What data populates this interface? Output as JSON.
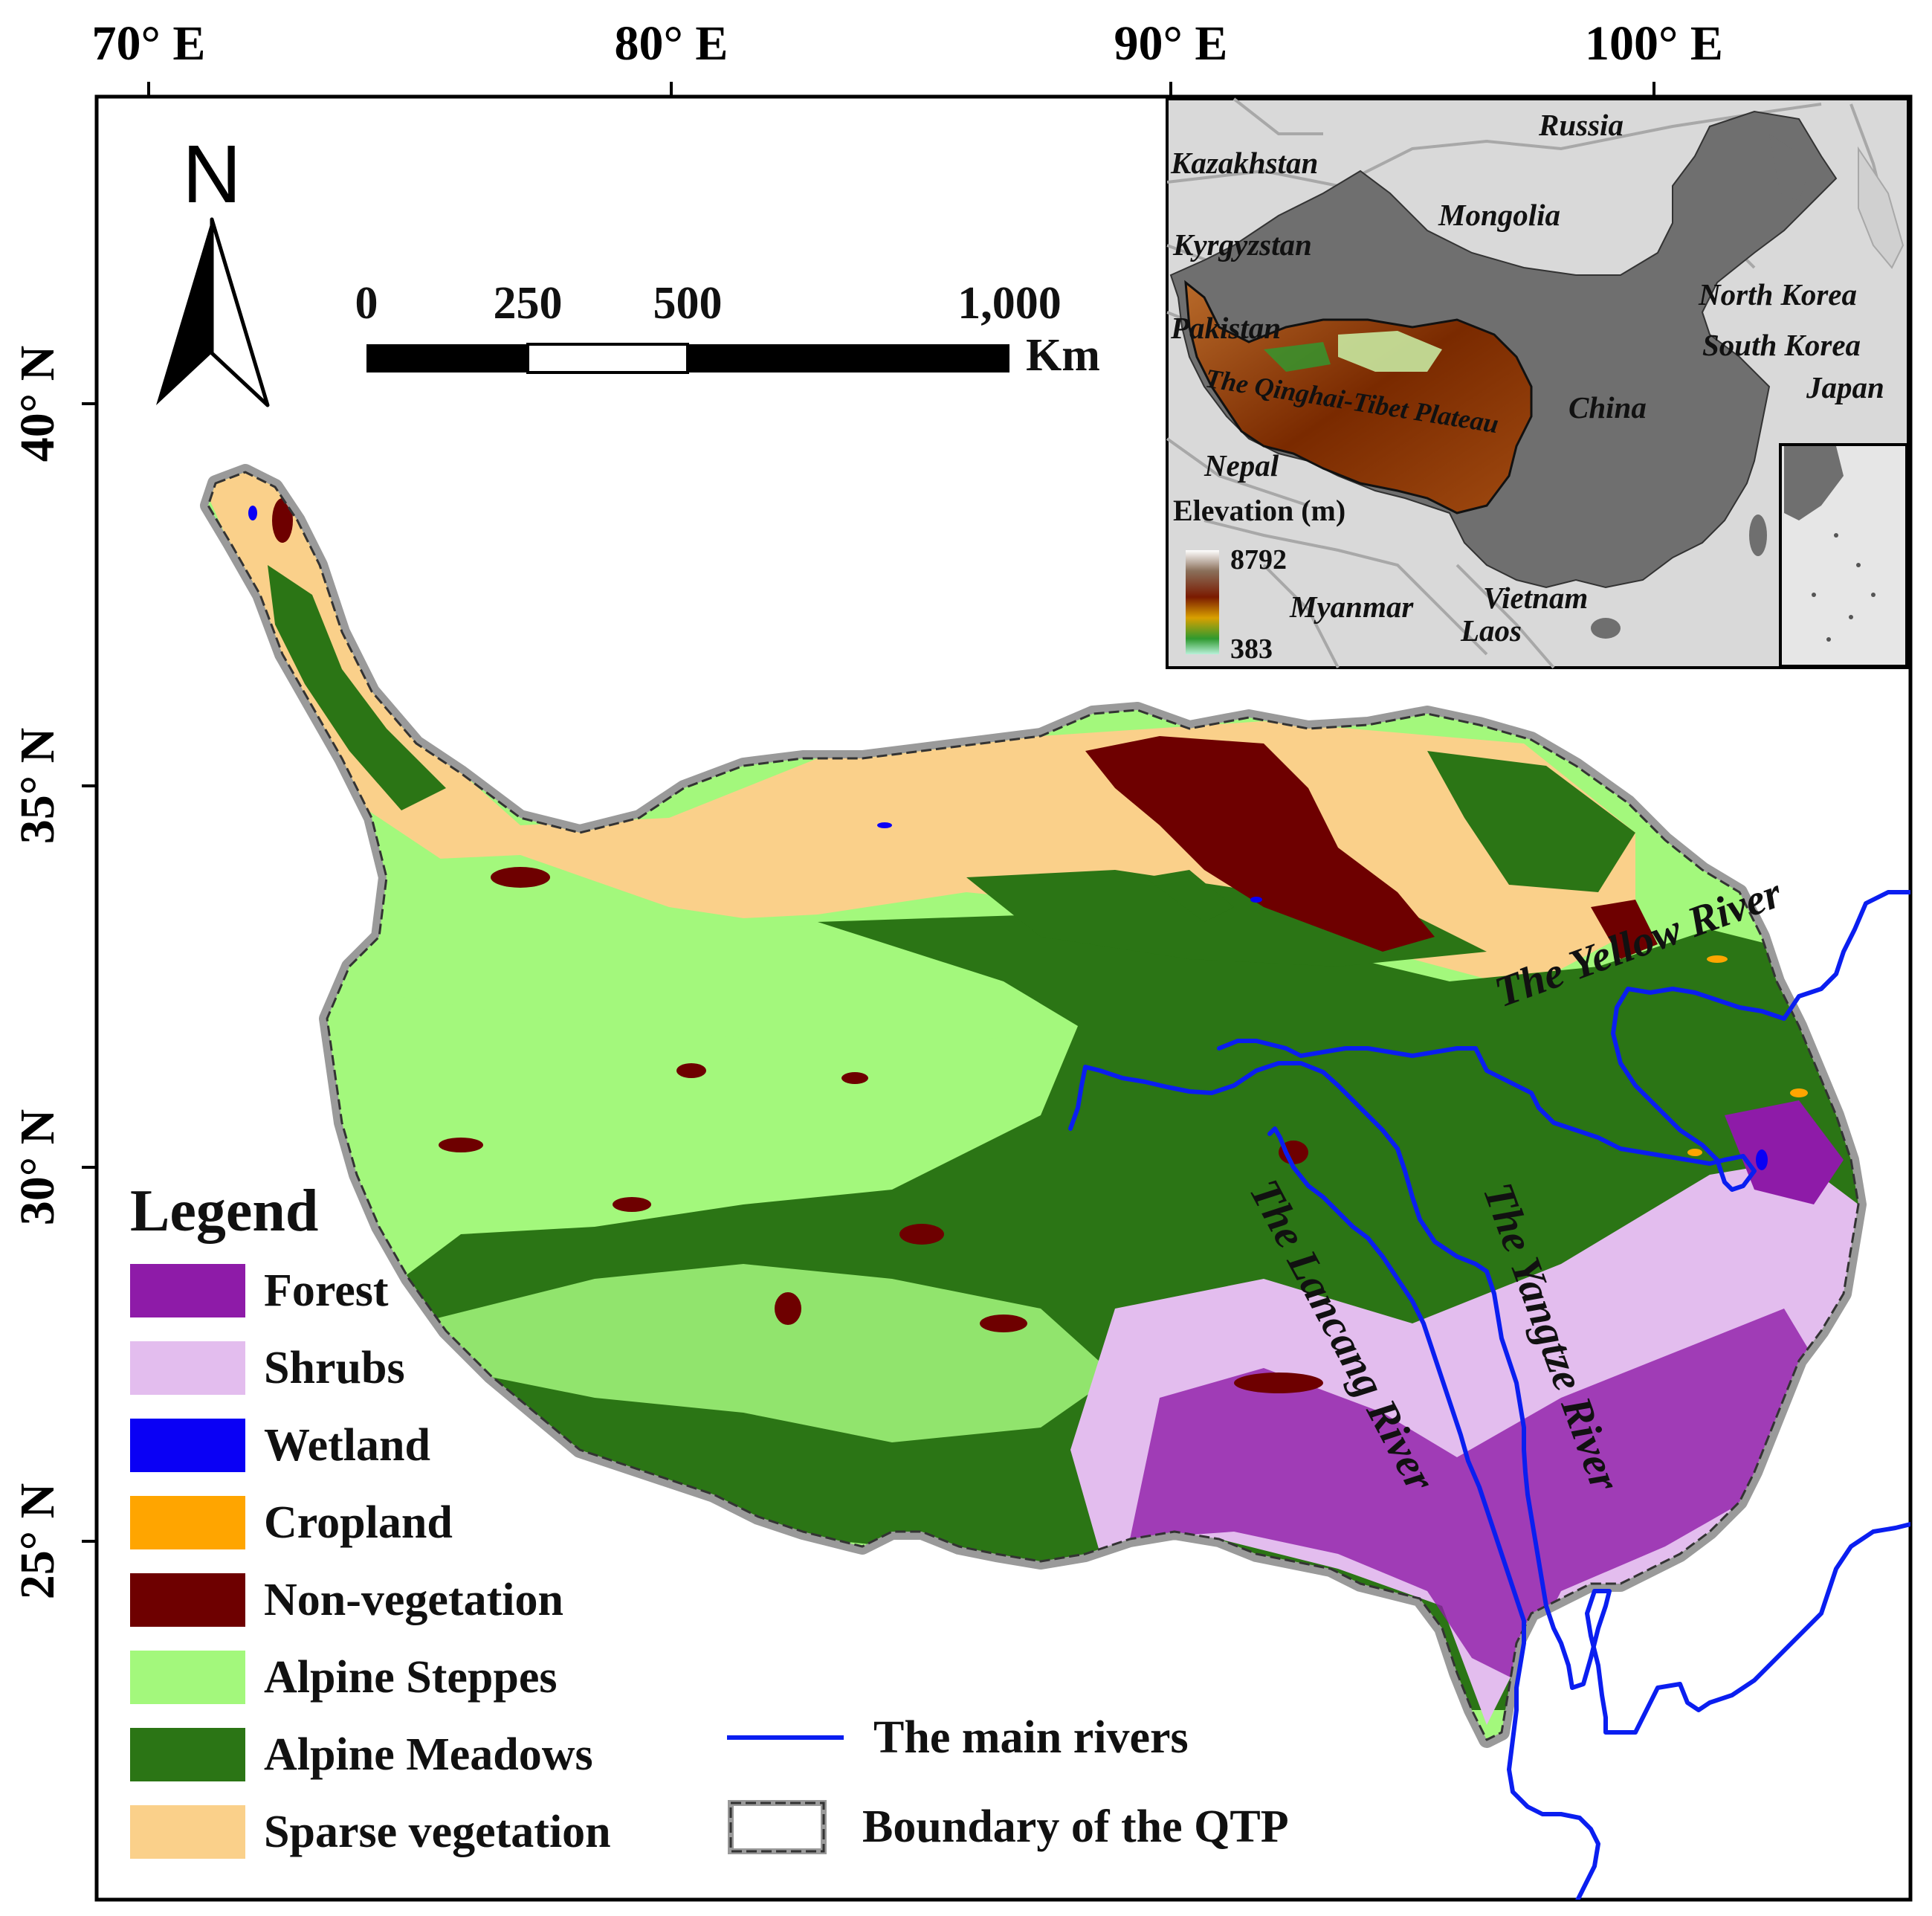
{
  "axes": {
    "x_ticks": [
      "70° E",
      "80° E",
      "90° E",
      "100° E"
    ],
    "y_ticks": [
      "40° N",
      "35° N",
      "30° N",
      "25° N"
    ]
  },
  "north_arrow": {
    "label": "N"
  },
  "scale_bar": {
    "ticks": [
      "0",
      "250",
      "500",
      "1,000"
    ],
    "unit": "Km"
  },
  "inset": {
    "labels": {
      "russia": "Russia",
      "kazakhstan": "Kazakhstan",
      "mongolia": "Mongolia",
      "kyrgyzstan": "Kyrgyzstan",
      "north_korea": "North Korea",
      "pakistan": "Pakistan",
      "south_korea": "South Korea",
      "qtp": "The Qinghai-Tibet Plateau",
      "china": "China",
      "japan": "Japan",
      "nepal": "Nepal",
      "myanmar": "Myanmar",
      "vietnam": "Vietnam",
      "laos": "Laos"
    },
    "elevation": {
      "title": "Elevation (m)",
      "max": "8792",
      "min": "383"
    }
  },
  "rivers": {
    "yellow": "The Yellow River",
    "yangtze": "The Yangtze River",
    "lancang": "The Lancang River"
  },
  "legend": {
    "title": "Legend",
    "items": [
      {
        "label": "Forest",
        "color": "#8E1BA8"
      },
      {
        "label": "Shrubs",
        "color": "#E3BDEE"
      },
      {
        "label": "Wetland",
        "color": "#0A00F5"
      },
      {
        "label": "Cropland",
        "color": "#FFA500"
      },
      {
        "label": "Non-vegetation",
        "color": "#6E0000"
      },
      {
        "label": "Alpine Steppes",
        "color": "#A3F87C"
      },
      {
        "label": "Alpine Meadows",
        "color": "#2B7515"
      },
      {
        "label": "Sparse vegetation",
        "color": "#FAD08A"
      }
    ],
    "river_label": "The main rivers",
    "river_color": "#0A1EF0",
    "boundary_label": "Boundary of the QTP"
  }
}
